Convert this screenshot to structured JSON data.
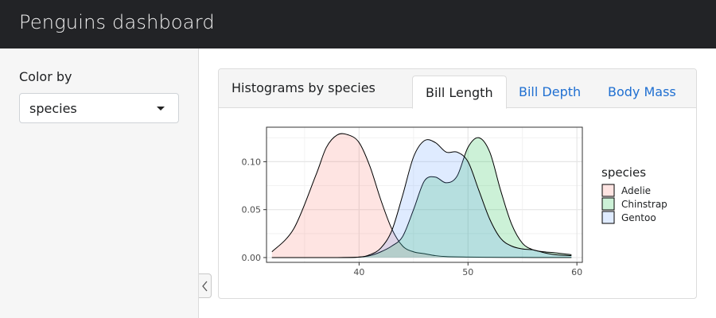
{
  "app": {
    "title": "Penguins dashboard"
  },
  "sidebar": {
    "control_label": "Color by",
    "select": {
      "value": "species"
    }
  },
  "card": {
    "title": "Histograms by species",
    "tabs": [
      {
        "label": "Bill Length",
        "active": true
      },
      {
        "label": "Bill Depth",
        "active": false
      },
      {
        "label": "Body Mass",
        "active": false
      }
    ]
  },
  "chart_data": {
    "type": "area",
    "xlim": [
      31.5,
      60.5
    ],
    "ylim": [
      -0.005,
      0.136
    ],
    "x_ticks": [
      "40",
      "50",
      "60"
    ],
    "y_ticks": [
      "0.00",
      "0.05",
      "0.10"
    ],
    "grid": true,
    "legend_position": "right",
    "legend_title": "species",
    "series": [
      {
        "name": "Adelie",
        "color": "#f8766d",
        "x": [
          32,
          34,
          36,
          37,
          38,
          39,
          40,
          41,
          42,
          43,
          44,
          45,
          46,
          47,
          48,
          50,
          52,
          54,
          56,
          58,
          59.5
        ],
        "y": [
          0.006,
          0.03,
          0.085,
          0.115,
          0.128,
          0.128,
          0.12,
          0.095,
          0.06,
          0.03,
          0.012,
          0.006,
          0.004,
          0.002,
          0.001,
          0.0005,
          0.0003,
          0.0002,
          0.0001,
          0.0001,
          0.0001
        ]
      },
      {
        "name": "Chinstrap",
        "color": "#00ba38",
        "x": [
          32,
          38,
          40,
          41,
          42,
          43,
          44,
          45,
          46,
          47,
          48,
          49,
          50,
          51,
          52,
          53,
          54,
          55,
          56,
          57,
          58,
          59.5
        ],
        "y": [
          0,
          0,
          0.0005,
          0.002,
          0.006,
          0.012,
          0.022,
          0.05,
          0.08,
          0.084,
          0.078,
          0.085,
          0.115,
          0.125,
          0.11,
          0.07,
          0.035,
          0.015,
          0.008,
          0.006,
          0.005,
          0.003
        ]
      },
      {
        "name": "Gentoo",
        "color": "#619cff",
        "x": [
          32,
          38,
          40,
          41,
          42,
          43,
          44,
          45,
          46,
          47,
          48,
          49,
          50,
          51,
          52,
          53,
          54,
          55,
          56,
          57,
          58,
          59.5
        ],
        "y": [
          0,
          0,
          0.0005,
          0.003,
          0.01,
          0.028,
          0.065,
          0.105,
          0.122,
          0.12,
          0.11,
          0.11,
          0.1,
          0.07,
          0.04,
          0.02,
          0.012,
          0.009,
          0.008,
          0.005,
          0.003,
          0.002
        ]
      }
    ]
  }
}
